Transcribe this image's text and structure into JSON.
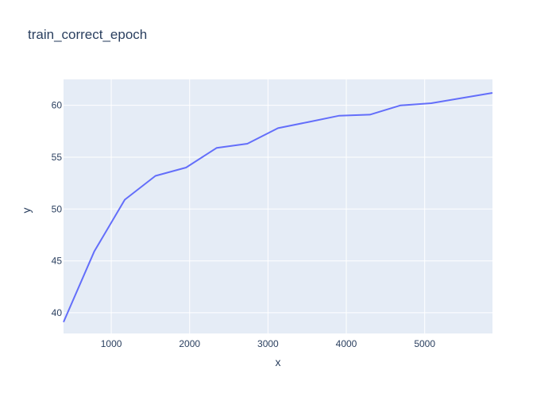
{
  "chart_data": {
    "type": "line",
    "title": "train_correct_epoch",
    "xlabel": "x",
    "ylabel": "y",
    "x": [
      391,
      782,
      1173,
      1564,
      1955,
      2346,
      2737,
      3128,
      3519,
      3910,
      4301,
      4692,
      5083,
      5474,
      5865
    ],
    "series": [
      {
        "values": [
          39.1,
          45.9,
          50.9,
          53.2,
          54.0,
          55.9,
          56.3,
          57.8,
          58.4,
          59.0,
          59.1,
          60.0,
          60.2,
          60.7,
          61.2
        ]
      }
    ],
    "xlim": [
      391,
      5865
    ],
    "ylim": [
      38.0,
      62.5
    ],
    "x_ticks": [
      1000,
      2000,
      3000,
      4000,
      5000
    ],
    "x_tick_labels": [
      "1000",
      "2000",
      "3000",
      "4000",
      "5000"
    ],
    "y_ticks": [
      40,
      45,
      50,
      55,
      60
    ],
    "y_tick_labels": [
      "40",
      "45",
      "50",
      "55",
      "60"
    ],
    "grid": true,
    "colors": {
      "line": "#636efa",
      "plot_bg": "#e5ecf6",
      "grid": "#ffffff",
      "text": "#2a3f5f"
    }
  }
}
